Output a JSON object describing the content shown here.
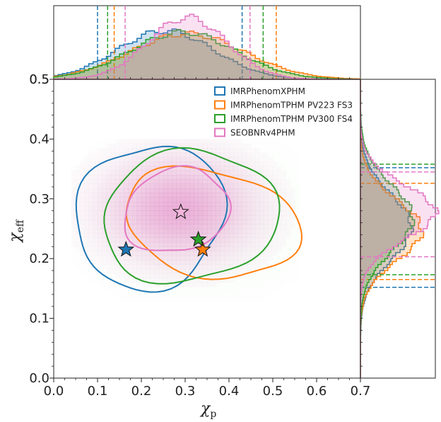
{
  "chart_data": {
    "type": "corner-density",
    "xlabel_main": "χ",
    "xlabel_sub": "p",
    "ylabel_main": "χ",
    "ylabel_sub": "eff",
    "xlim": [
      0.0,
      0.7
    ],
    "ylim": [
      0.0,
      0.5
    ],
    "x_ticks": [
      "0.0",
      "0.1",
      "0.2",
      "0.3",
      "0.4",
      "0.5",
      "0.6",
      "0.7"
    ],
    "y_ticks": [
      "0.0",
      "0.1",
      "0.2",
      "0.3",
      "0.4",
      "0.5"
    ],
    "x_tick_values": [
      0.0,
      0.1,
      0.2,
      0.3,
      0.4,
      0.5,
      0.6,
      0.7
    ],
    "y_tick_values": [
      0.0,
      0.1,
      0.2,
      0.3,
      0.4,
      0.5
    ],
    "series": [
      {
        "name": "IMRPhenomXPHM",
        "color": "#1f77b4",
        "star": {
          "chi_p": 0.165,
          "chi_eff": 0.215
        },
        "chi_p_interval": [
          0.1,
          0.43
        ],
        "chi_eff_interval": [
          0.152,
          0.352
        ],
        "contour": {
          "cx": 0.22,
          "cy": 0.27,
          "rx": 0.17,
          "ry": 0.12
        }
      },
      {
        "name": "IMRPhenomTPHM PV223 FS3",
        "color": "#ff7f0e",
        "star": {
          "chi_p": 0.34,
          "chi_eff": 0.215
        },
        "chi_p_interval": [
          0.138,
          0.508
        ],
        "chi_eff_interval": [
          0.165,
          0.326
        ],
        "contour": {
          "cx": 0.36,
          "cy": 0.26,
          "rx": 0.2,
          "ry": 0.09
        }
      },
      {
        "name": "IMRPhenomTPHM PV300 FS4",
        "color": "#2ca02c",
        "star": {
          "chi_p": 0.33,
          "chi_eff": 0.232
        },
        "chi_p_interval": [
          0.123,
          0.478
        ],
        "chi_eff_interval": [
          0.173,
          0.358
        ],
        "contour": {
          "cx": 0.31,
          "cy": 0.27,
          "rx": 0.2,
          "ry": 0.11
        }
      },
      {
        "name": "SEOBNRv4PHM",
        "color": "#e377c2",
        "star": {
          "chi_p": 0.29,
          "chi_eff": 0.278
        },
        "chi_p_interval": [
          0.163,
          0.448
        ],
        "chi_eff_interval": [
          0.203,
          0.345
        ],
        "contour": {
          "cx": 0.28,
          "cy": 0.28,
          "rx": 0.12,
          "ry": 0.07
        }
      }
    ],
    "legend_position": "top-right"
  }
}
